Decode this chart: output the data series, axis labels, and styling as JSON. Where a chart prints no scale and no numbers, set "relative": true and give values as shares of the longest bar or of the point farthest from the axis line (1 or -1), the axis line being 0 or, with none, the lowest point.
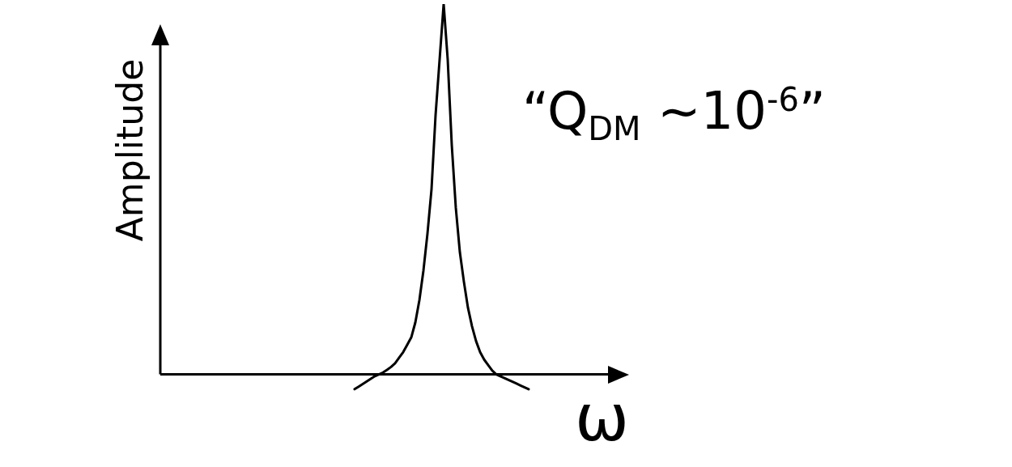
{
  "chart_data": {
    "type": "line",
    "relative": true,
    "xlabel": "ω",
    "ylabel": "Amplitude",
    "annotations": [
      "“Q$_{DM}$ ~10$^{-6}$”"
    ],
    "marker": "none",
    "line_style": "solid",
    "legend": false,
    "grid": false,
    "categories": [
      null,
      null,
      null,
      null,
      null,
      null,
      null,
      null,
      null,
      null,
      null,
      null,
      null,
      null,
      null,
      null,
      null,
      null,
      null,
      null,
      null,
      null,
      null,
      null,
      null,
      null,
      null,
      null,
      null,
      null,
      null,
      null,
      null,
      null,
      null,
      null,
      null,
      null,
      null,
      null,
      null,
      null,
      null,
      null,
      null,
      null,
      null,
      null,
      null,
      null,
      null,
      null,
      null,
      null,
      null,
      null,
      null,
      null,
      null,
      null,
      null,
      null,
      null,
      null,
      null,
      null,
      null,
      null,
      null,
      null,
      null,
      null,
      null,
      null,
      null,
      null,
      null,
      null,
      null,
      null,
      null,
      null,
      null,
      null,
      null,
      null,
      null,
      null,
      null,
      null,
      null,
      null,
      null,
      null,
      null,
      null,
      null,
      null,
      null,
      null,
      null,
      null,
      null,
      null,
      null,
      null,
      null,
      null,
      null,
      null,
      null,
      null,
      null,
      null,
      null,
      null
    ],
    "series": [
      {
        "color": "#000000",
        "values": [
          null,
          null,
          null,
          null,
          null,
          null,
          null,
          null,
          null,
          null,
          null,
          null,
          null,
          null,
          null,
          null,
          null,
          null,
          null,
          null,
          null,
          null,
          null,
          null,
          null,
          null,
          null,
          null,
          null,
          null,
          null,
          null,
          null,
          null,
          null,
          null,
          null,
          null,
          null,
          null,
          null,
          null,
          null,
          null,
          null,
          null,
          null,
          null,
          -0.04,
          -0.033,
          -0.026,
          -0.019,
          -0.012,
          -0.005,
          0,
          0.005,
          0.012,
          0.02,
          0.03,
          0.045,
          0.06,
          0.08,
          0.1,
          0.14,
          0.2,
          0.28,
          0.38,
          0.5,
          0.7,
          0.85,
          1,
          0.85,
          0.62,
          0.45,
          0.33,
          0.25,
          0.18,
          0.13,
          0.09,
          0.06,
          0.04,
          0.025,
          0.01,
          0,
          -0.005,
          -0.01,
          -0.015,
          -0.02,
          -0.025,
          -0.03,
          -0.035,
          -0.04,
          null,
          null,
          null,
          null,
          null,
          null,
          null,
          null,
          null,
          null,
          null,
          null,
          null,
          null,
          null,
          null,
          null,
          null,
          null,
          null,
          null,
          null,
          null,
          null
        ]
      }
    ]
  }
}
